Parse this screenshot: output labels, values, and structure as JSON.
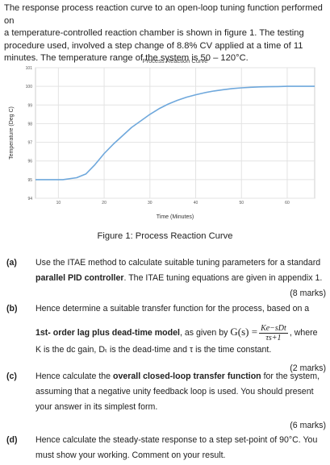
{
  "intro": {
    "line1": "The response process reaction curve to an open-loop tuning function performed on",
    "line2": "a temperature-controlled reaction chamber is shown in figure 1.  The testing",
    "line3": "procedure used, involved a step change of 8.8% CV applied at a time of 11",
    "line4": "minutes.  The temperature range of the system is 50 – 120°C."
  },
  "chart_data": {
    "type": "line",
    "title": "Process Reaction Curve",
    "xlabel": "Time (Minutes)",
    "ylabel": "Temperature (Deg C)",
    "xlim": [
      5,
      66
    ],
    "ylim": [
      94,
      101
    ],
    "xticks": [
      10,
      20,
      30,
      40,
      50,
      60
    ],
    "yticks": [
      94,
      95,
      96,
      97,
      98,
      99,
      100,
      101
    ],
    "grid": true,
    "legend": "none",
    "series": [
      {
        "color": "#6fa8dc",
        "x": [
          5,
          11,
          14,
          16,
          18,
          20,
          22,
          24,
          26,
          28,
          30,
          32,
          34,
          36,
          38,
          40,
          42,
          44,
          46,
          48,
          50,
          52,
          54,
          56,
          58,
          60,
          62,
          64,
          66
        ],
        "y": [
          95,
          95,
          95.1,
          95.3,
          95.8,
          96.4,
          96.9,
          97.35,
          97.8,
          98.15,
          98.5,
          98.8,
          99.05,
          99.25,
          99.42,
          99.55,
          99.66,
          99.75,
          99.82,
          99.88,
          99.92,
          99.95,
          99.97,
          99.98,
          99.99,
          100,
          100,
          100,
          100
        ]
      }
    ]
  },
  "caption": "Figure 1: Process Reaction Curve",
  "questions": {
    "a": {
      "label": "(a)",
      "line1": "Use the ITAE method to calculate suitable tuning parameters for a standard",
      "bold": "parallel PID controller",
      "rest": ".  The ITAE tuning equations are given in appendix 1.",
      "marks": "(8 marks)"
    },
    "b": {
      "label": "(b)",
      "line1": "Hence determine a suitable transfer function for the process, based on a",
      "bold": "1st- order lag plus dead-time model",
      "mid": ", as given by ",
      "formula_lhs": "G(s) =",
      "num": "Ke−sDt",
      "den": "τs+1",
      "after": ", where",
      "line3": "K is the dc gain, Dₜ is the dead-time and τ is the time constant.",
      "marks": "(2 marks)"
    },
    "c": {
      "label": "(c)",
      "pre": "Hence calculate the ",
      "bold": "overall closed-loop transfer function",
      "post": " for the system,",
      "line2": "assuming that a negative unity feedback loop is used.  You should present",
      "line3": "your answer in its simplest form.",
      "marks": "(6 marks)"
    },
    "d": {
      "label": "(d)",
      "line1": "Hence calculate the steady-state response to a step set-point of 90°C.  You",
      "line2": "must show your working.  Comment on your result."
    }
  }
}
